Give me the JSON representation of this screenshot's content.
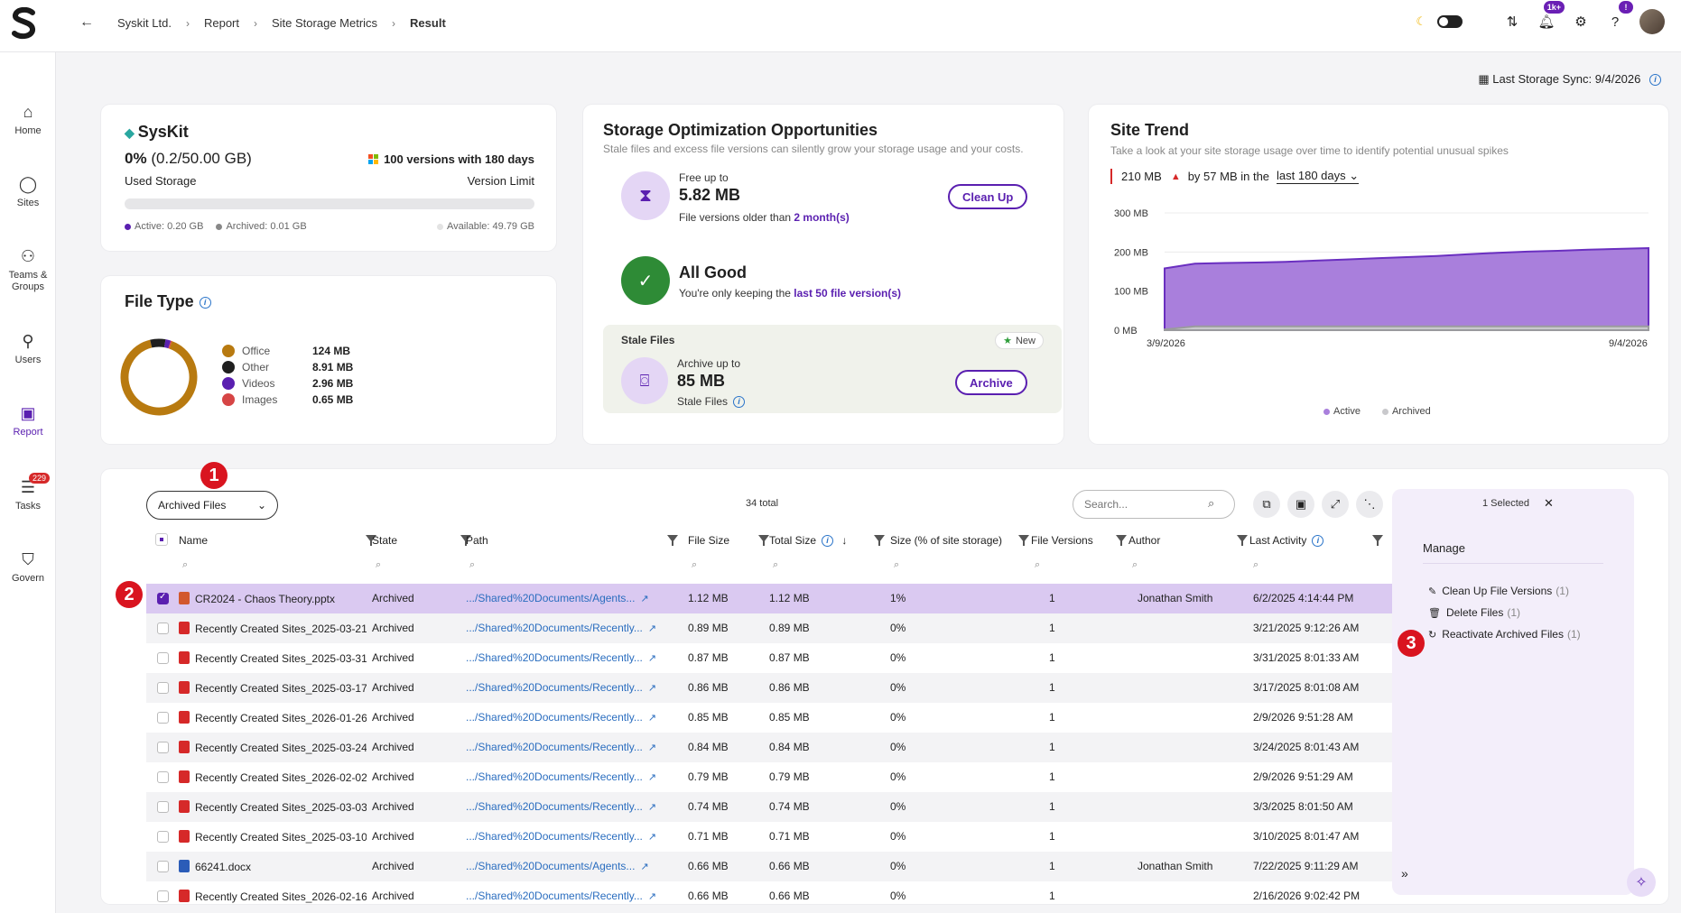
{
  "header": {
    "breadcrumbs": [
      "Syskit Ltd.",
      "Report",
      "Site Storage Metrics",
      "Result"
    ],
    "notifications_badge": "1k+",
    "help_badge": "!"
  },
  "sidebar": {
    "items": [
      {
        "label": "Home",
        "icon": "home-icon"
      },
      {
        "label": "Sites",
        "icon": "sites-icon"
      },
      {
        "label": "Teams & Groups",
        "icon": "teams-icon"
      },
      {
        "label": "Users",
        "icon": "users-icon"
      },
      {
        "label": "Report",
        "icon": "report-icon"
      },
      {
        "label": "Tasks",
        "icon": "tasks-icon",
        "badge": "229"
      },
      {
        "label": "Govern",
        "icon": "govern-icon"
      }
    ]
  },
  "sync": {
    "label": "Last Storage Sync:",
    "value": "9/4/2026"
  },
  "syskit": {
    "title": "SysKit",
    "pct": "0%",
    "pct_detail": "(0.2/50.00 GB)",
    "used_label": "Used Storage",
    "versions": "100 versions with 180 days",
    "version_limit_label": "Version Limit",
    "active": "Active: 0.20 GB",
    "archived": "Archived: 0.01 GB",
    "available": "Available: 49.79 GB"
  },
  "file_type": {
    "title": "File Type",
    "items": [
      {
        "label": "Office",
        "value": "124 MB",
        "color": "#b87a10",
        "share": 0.906
      },
      {
        "label": "Other",
        "value": "8.91 MB",
        "color": "#1f1f1f",
        "share": 0.065
      },
      {
        "label": "Videos",
        "value": "2.96 MB",
        "color": "#5a1fb0",
        "share": 0.022
      },
      {
        "label": "Images",
        "value": "0.65 MB",
        "color": "#d64545",
        "share": 0.007
      }
    ]
  },
  "optimization": {
    "title": "Storage Optimization Opportunities",
    "subtitle": "Stale files and excess file versions can silently grow your storage usage and your costs.",
    "free_label": "Free up to",
    "free_value": "5.82 MB",
    "free_desc": "File versions older than",
    "free_link": "2 month(s)",
    "cleanup_label": "Clean Up",
    "good_title": "All Good",
    "good_desc": "You're only keeping the",
    "good_link": "last 50 file version(s)",
    "stale_title": "Stale Files",
    "new_badge": "New",
    "archive_label": "Archive up to",
    "archive_value": "85 MB",
    "stale_desc": "Stale Files",
    "archive_button": "Archive"
  },
  "trend": {
    "title": "Site Trend",
    "subtitle": "Take a look at your site storage usage over time to identify potential unusual spikes",
    "current": "210 MB",
    "change": "by 57 MB in the",
    "period": "last 180 days",
    "legend_active": "Active",
    "legend_archived": "Archived",
    "active_color": "#a97fdc",
    "archived_color": "#c9c9cc"
  },
  "chart_data": {
    "type": "area",
    "xlabels": [
      "3/9/2026",
      "9/4/2026"
    ],
    "yticks": [
      "300 MB",
      "200 MB",
      "100 MB",
      "0 MB"
    ],
    "ylim": [
      0,
      300
    ],
    "series": [
      {
        "name": "Active",
        "values": [
          158,
          170,
          172,
          173,
          175,
          178,
          181,
          184,
          187,
          190,
          194,
          198,
          201,
          203,
          206,
          208,
          210
        ]
      },
      {
        "name": "Archived",
        "values": [
          2,
          10,
          10,
          10,
          10,
          10,
          10,
          10,
          10,
          10,
          10,
          10,
          10,
          10,
          10,
          10,
          10
        ]
      }
    ]
  },
  "table": {
    "view": "Archived Files",
    "total": "34 total",
    "search_placeholder": "Search...",
    "columns": [
      "Name",
      "State",
      "Path",
      "File Size",
      "Total Size",
      "Size (% of site storage)",
      "File Versions",
      "Author",
      "Last Activity"
    ],
    "rows": [
      {
        "name": "CR2024 - Chaos Theory.pptx",
        "type": "ppt",
        "state": "Archived",
        "path": ".../Shared%20Documents/Agents...",
        "file_size": "1.12 MB",
        "total_size": "1.12 MB",
        "pct": "1%",
        "versions": "1",
        "author": "Jonathan Smith",
        "last": "6/2/2025 4:14:44 PM",
        "selected": true
      },
      {
        "name": "Recently Created Sites_2025-03-21.pd",
        "type": "pdf",
        "state": "Archived",
        "path": ".../Shared%20Documents/Recently...",
        "file_size": "0.89 MB",
        "total_size": "0.89 MB",
        "pct": "0%",
        "versions": "1",
        "author": "",
        "last": "3/21/2025 9:12:26 AM"
      },
      {
        "name": "Recently Created Sites_2025-03-31.pd",
        "type": "pdf",
        "state": "Archived",
        "path": ".../Shared%20Documents/Recently...",
        "file_size": "0.87 MB",
        "total_size": "0.87 MB",
        "pct": "0%",
        "versions": "1",
        "author": "",
        "last": "3/31/2025 8:01:33 AM"
      },
      {
        "name": "Recently Created Sites_2025-03-17.pd",
        "type": "pdf",
        "state": "Archived",
        "path": ".../Shared%20Documents/Recently...",
        "file_size": "0.86 MB",
        "total_size": "0.86 MB",
        "pct": "0%",
        "versions": "1",
        "author": "",
        "last": "3/17/2025 8:01:08 AM"
      },
      {
        "name": "Recently Created Sites_2026-01-26.pd",
        "type": "pdf",
        "state": "Archived",
        "path": ".../Shared%20Documents/Recently...",
        "file_size": "0.85 MB",
        "total_size": "0.85 MB",
        "pct": "0%",
        "versions": "1",
        "author": "",
        "last": "2/9/2026 9:51:28 AM"
      },
      {
        "name": "Recently Created Sites_2025-03-24.pd",
        "type": "pdf",
        "state": "Archived",
        "path": ".../Shared%20Documents/Recently...",
        "file_size": "0.84 MB",
        "total_size": "0.84 MB",
        "pct": "0%",
        "versions": "1",
        "author": "",
        "last": "3/24/2025 8:01:43 AM"
      },
      {
        "name": "Recently Created Sites_2026-02-02.pd",
        "type": "pdf",
        "state": "Archived",
        "path": ".../Shared%20Documents/Recently...",
        "file_size": "0.79 MB",
        "total_size": "0.79 MB",
        "pct": "0%",
        "versions": "1",
        "author": "",
        "last": "2/9/2026 9:51:29 AM"
      },
      {
        "name": "Recently Created Sites_2025-03-03.pd",
        "type": "pdf",
        "state": "Archived",
        "path": ".../Shared%20Documents/Recently...",
        "file_size": "0.74 MB",
        "total_size": "0.74 MB",
        "pct": "0%",
        "versions": "1",
        "author": "",
        "last": "3/3/2025 8:01:50 AM"
      },
      {
        "name": "Recently Created Sites_2025-03-10.pd",
        "type": "pdf",
        "state": "Archived",
        "path": ".../Shared%20Documents/Recently...",
        "file_size": "0.71 MB",
        "total_size": "0.71 MB",
        "pct": "0%",
        "versions": "1",
        "author": "",
        "last": "3/10/2025 8:01:47 AM"
      },
      {
        "name": "66241.docx",
        "type": "doc",
        "state": "Archived",
        "path": ".../Shared%20Documents/Agents...",
        "file_size": "0.66 MB",
        "total_size": "0.66 MB",
        "pct": "0%",
        "versions": "1",
        "author": "Jonathan Smith",
        "last": "7/22/2025 9:11:29 AM"
      },
      {
        "name": "Recently Created Sites_2026-02-16.pd",
        "type": "pdf",
        "state": "Archived",
        "path": ".../Shared%20Documents/Recently...",
        "file_size": "0.66 MB",
        "total_size": "0.66 MB",
        "pct": "0%",
        "versions": "1",
        "author": "",
        "last": "2/16/2026 9:02:42 PM"
      }
    ]
  },
  "manage": {
    "selected": "1 Selected",
    "title": "Manage",
    "actions": [
      {
        "label": "Clean Up File Versions",
        "count": "(1)"
      },
      {
        "label": "Delete Files",
        "count": "(1)"
      },
      {
        "label": "Reactivate Archived Files",
        "count": "(1)"
      }
    ]
  },
  "markers": [
    "1",
    "2",
    "3"
  ]
}
